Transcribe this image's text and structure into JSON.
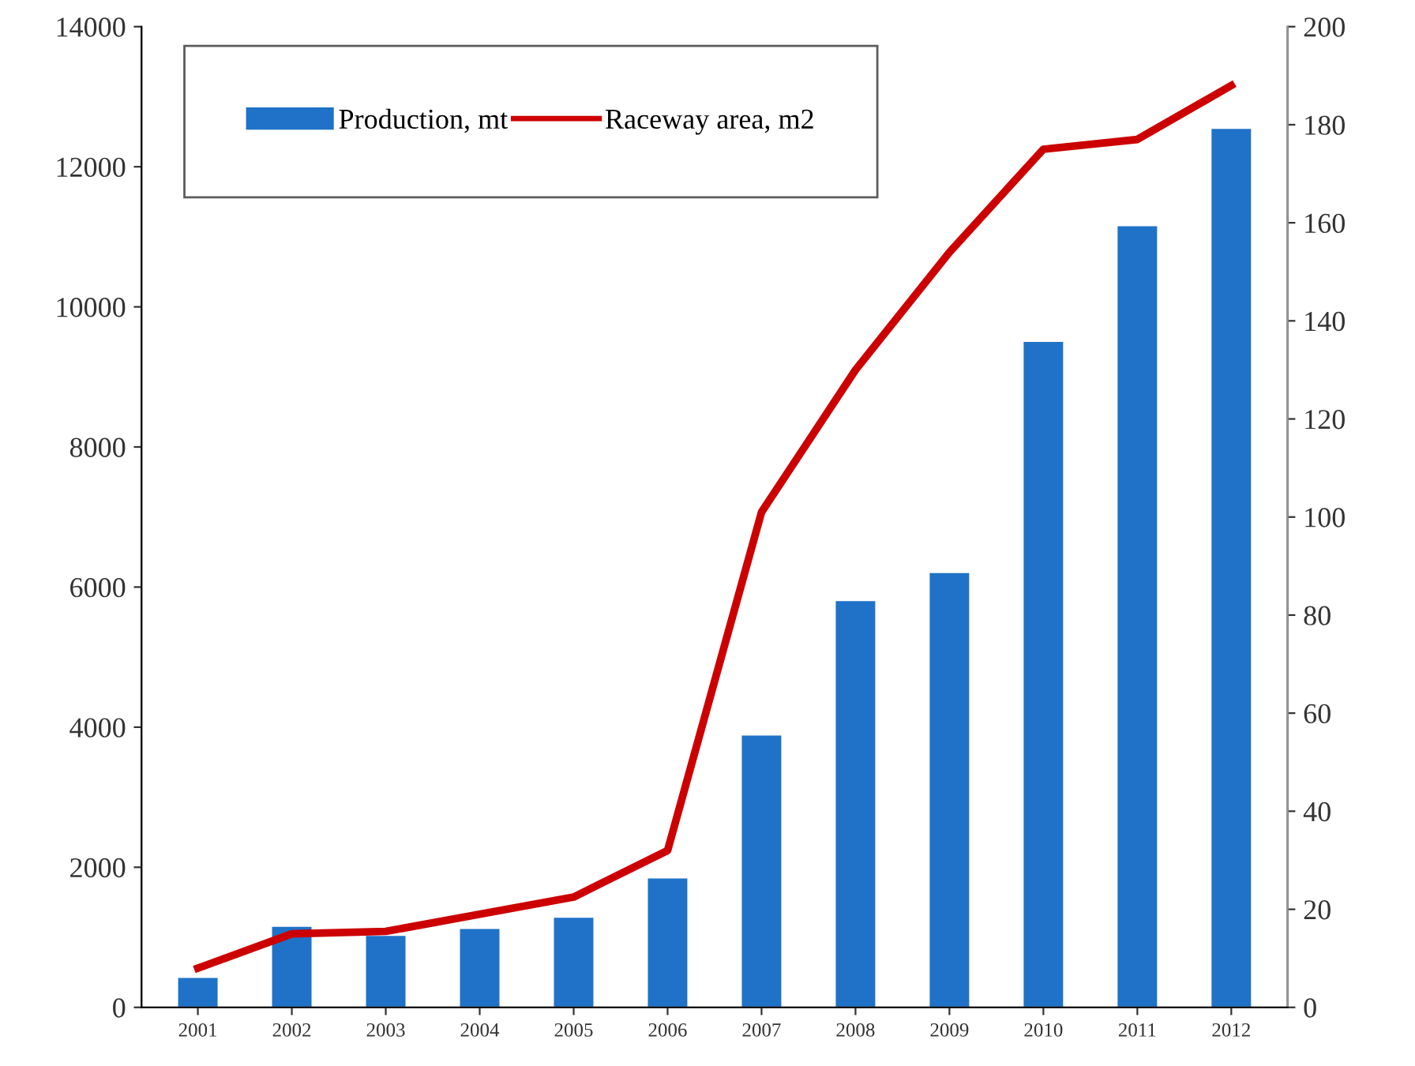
{
  "chart_data": {
    "type": "bar",
    "categories": [
      "2001",
      "2002",
      "2003",
      "2004",
      "2005",
      "2006",
      "2007",
      "2008",
      "2009",
      "2010",
      "2011",
      "2012"
    ],
    "series": [
      {
        "name": "Production, mt",
        "color": "#1f72c8",
        "values": [
          420,
          1150,
          1020,
          1120,
          1280,
          1840,
          3880,
          5800,
          6200,
          9500,
          11150,
          12540
        ]
      },
      {
        "name": "Raceway area, m2",
        "type": "line",
        "axis": "y2",
        "color": "#cc0000",
        "values": [
          8,
          15,
          15.5,
          19,
          22.5,
          32,
          101,
          130,
          154,
          175,
          177,
          188
        ]
      }
    ],
    "ylim": [
      0,
      14000
    ],
    "yticks": [
      0,
      2000,
      4000,
      6000,
      8000,
      10000,
      12000,
      14000
    ],
    "y2lim": [
      0,
      200
    ],
    "y2ticks": [
      0,
      20,
      40,
      60,
      80,
      100,
      120,
      140,
      160,
      180,
      200
    ],
    "legend": "top left",
    "grid": false
  }
}
